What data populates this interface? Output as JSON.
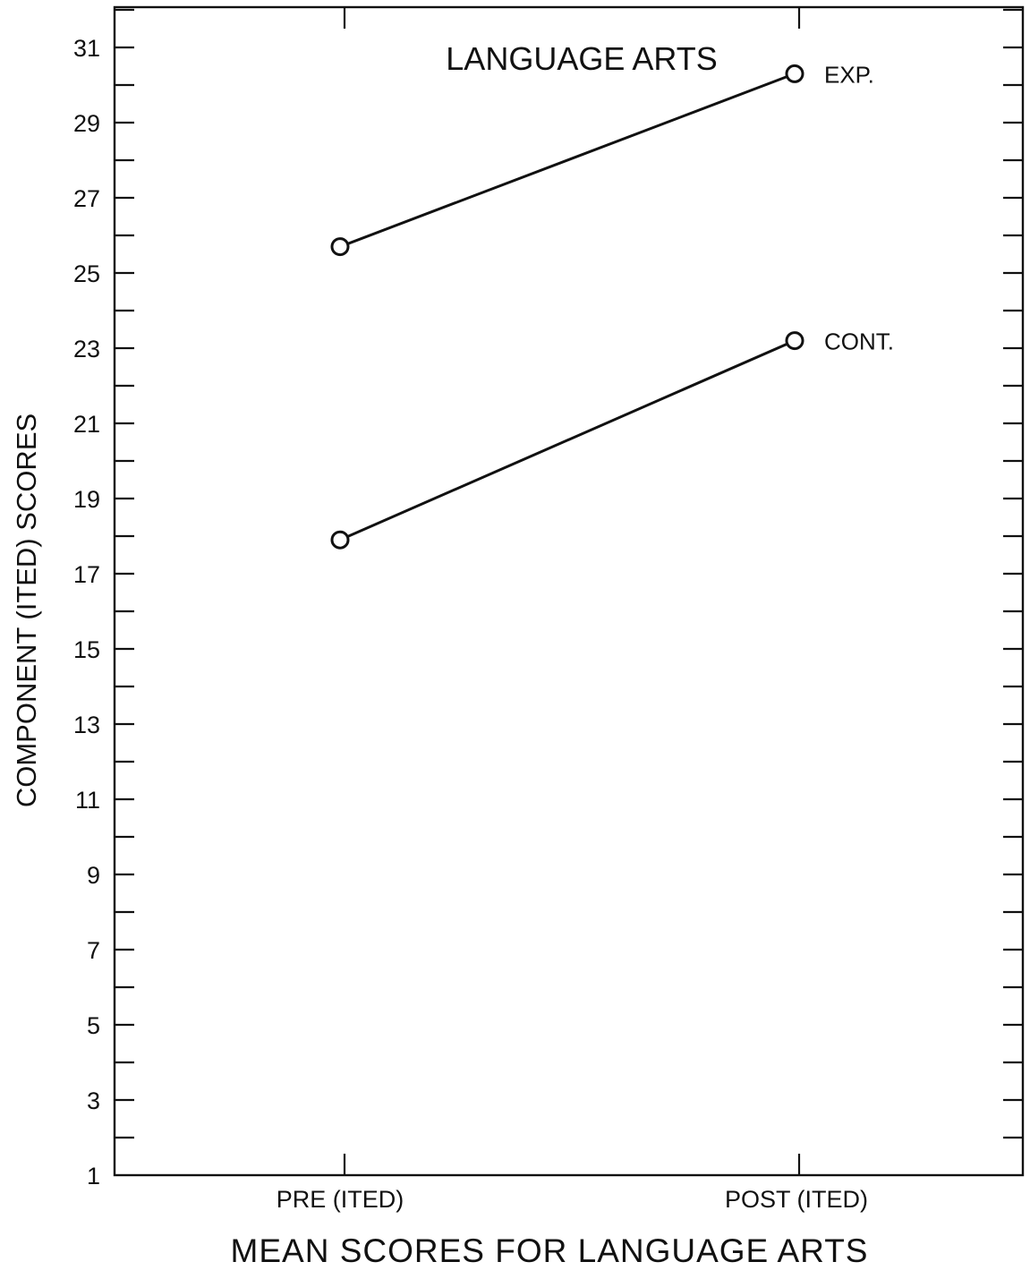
{
  "chart_data": {
    "type": "line",
    "title": "LANGUAGE ARTS",
    "xlabel": "MEAN SCORES FOR LANGUAGE ARTS",
    "ylabel": "COMPONENT (ITED) SCORES",
    "categories": [
      "PRE (ITED)",
      "POST (ITED)"
    ],
    "series": [
      {
        "name": "EXP.",
        "values": [
          25.7,
          30.3
        ]
      },
      {
        "name": "CONT.",
        "values": [
          17.9,
          23.2
        ]
      }
    ],
    "ylim": [
      1,
      32
    ],
    "yticks_labeled": [
      1,
      3,
      5,
      7,
      9,
      11,
      13,
      15,
      17,
      19,
      21,
      23,
      25,
      27,
      29,
      31
    ],
    "ytick_minor_step": 1,
    "grid": false,
    "legend": "inline labels at line ends"
  }
}
